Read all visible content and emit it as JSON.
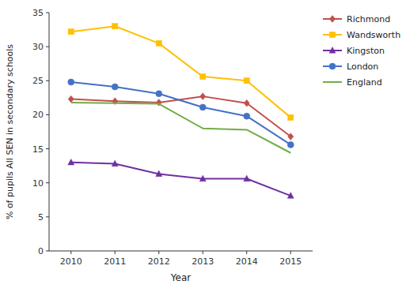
{
  "chart_data": {
    "type": "line",
    "x": [
      2010,
      2011,
      2012,
      2013,
      2014,
      2015
    ],
    "xlim": [
      2009.5,
      2015.5
    ],
    "xticks": [
      2010,
      2011,
      2012,
      2013,
      2014,
      2015
    ],
    "ylim": [
      0,
      35
    ],
    "yticks": [
      0,
      5,
      10,
      15,
      20,
      25,
      30,
      35
    ],
    "x_label": "Year",
    "y_label": "% of pupils All SEN in secondary schools",
    "grid": false,
    "legend": "right",
    "series": [
      {
        "name": "Richmond",
        "color": "#c0504d",
        "marker": "diamond",
        "line_style": "solid",
        "values": [
          22.3,
          22.0,
          21.8,
          22.7,
          21.7,
          16.8
        ]
      },
      {
        "name": "Wandsworth",
        "color": "#ffc000",
        "marker": "square",
        "line_style": "solid",
        "values": [
          32.2,
          33.0,
          30.5,
          25.6,
          25.0,
          19.6
        ]
      },
      {
        "name": "Kingston",
        "color": "#7030a0",
        "marker": "triangle",
        "line_style": "solid",
        "values": [
          13.0,
          12.8,
          11.3,
          10.6,
          10.6,
          8.1
        ]
      },
      {
        "name": "London",
        "color": "#4472c4",
        "marker": "circle",
        "line_style": "solid",
        "values": [
          24.8,
          24.1,
          23.1,
          21.1,
          19.8,
          15.6
        ]
      },
      {
        "name": "England",
        "color": "#70ad47",
        "marker": "none",
        "line_style": "solid",
        "values": [
          21.8,
          21.7,
          21.6,
          18.0,
          17.8,
          14.4
        ]
      }
    ]
  }
}
